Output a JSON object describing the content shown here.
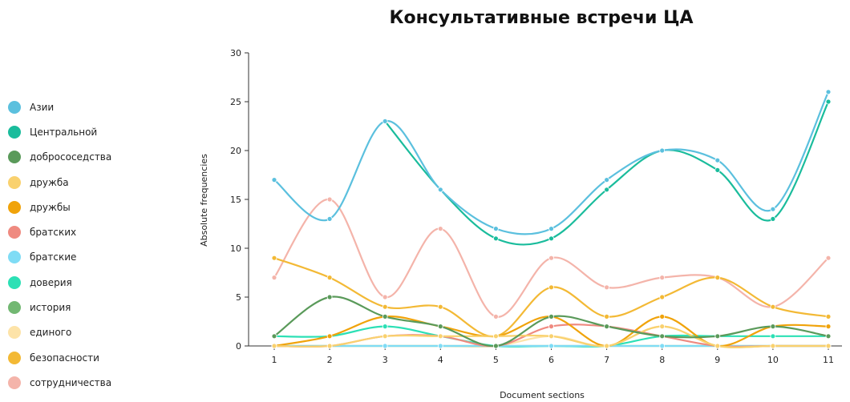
{
  "chart_data": {
    "type": "line",
    "title": "Консультативные встречи ЦА",
    "xlabel": "Document sections",
    "ylabel": "Absolute frequencies",
    "x": [
      1,
      2,
      3,
      4,
      5,
      6,
      7,
      8,
      9,
      10,
      11
    ],
    "ylim": [
      0,
      30
    ],
    "yticks": [
      0,
      5,
      10,
      15,
      20,
      25,
      30
    ],
    "grid": false,
    "legend_position": "left",
    "series": [
      {
        "name": "Азии",
        "color": "#5bc0de",
        "values": [
          17,
          13,
          23,
          16,
          12,
          12,
          17,
          20,
          19,
          14,
          26
        ]
      },
      {
        "name": "Центральной",
        "color": "#1abc9c",
        "values": [
          null,
          null,
          23,
          16,
          11,
          11,
          16,
          20,
          18,
          13,
          25
        ]
      },
      {
        "name": "добрососедства",
        "color": "#5a9a5a",
        "values": [
          1,
          5,
          3,
          2,
          0,
          3,
          2,
          1,
          1,
          2,
          1
        ]
      },
      {
        "name": "дружба",
        "color": "#f9d16e",
        "values": [
          0,
          0,
          1,
          1,
          1,
          1,
          0,
          2,
          0,
          0,
          0
        ]
      },
      {
        "name": "дружбы",
        "color": "#f0a30a",
        "values": [
          0,
          1,
          3,
          2,
          1,
          3,
          0,
          3,
          0,
          2,
          2
        ]
      },
      {
        "name": "братских",
        "color": "#ef8a80",
        "values": [
          0,
          0,
          1,
          1,
          0,
          2,
          2,
          1,
          0,
          0,
          0
        ]
      },
      {
        "name": "братские",
        "color": "#7fdcf5",
        "values": [
          0,
          0,
          0,
          0,
          0,
          0,
          0,
          0,
          0,
          0,
          0
        ]
      },
      {
        "name": "доверия",
        "color": "#2ce0b5",
        "values": [
          1,
          1,
          2,
          1,
          0,
          0,
          0,
          1,
          1,
          1,
          1
        ]
      },
      {
        "name": "история",
        "color": "#72b872",
        "values": [
          0,
          0,
          0,
          0,
          0,
          0,
          0,
          0,
          0,
          0,
          0
        ]
      },
      {
        "name": "единого",
        "color": "#fde3a8",
        "values": [
          0,
          0,
          0,
          0,
          0,
          1,
          0,
          2,
          0,
          0,
          0
        ]
      },
      {
        "name": "безопасности",
        "color": "#f3b935",
        "values": [
          9,
          7,
          4,
          4,
          1,
          6,
          3,
          5,
          7,
          4,
          3
        ]
      },
      {
        "name": "сотрудничества",
        "color": "#f4b4aa",
        "values": [
          7,
          15,
          5,
          12,
          3,
          9,
          6,
          7,
          7,
          4,
          9
        ]
      }
    ]
  }
}
